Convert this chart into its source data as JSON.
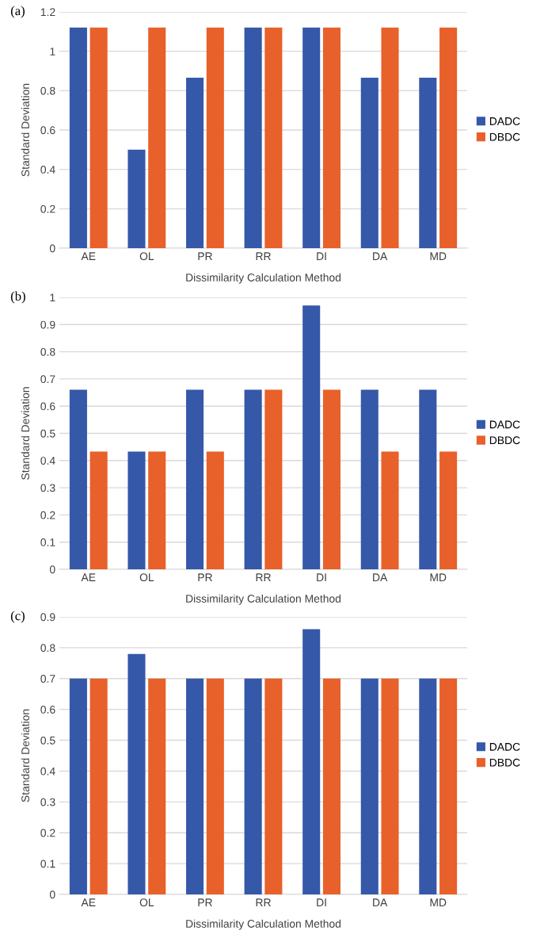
{
  "chart_data": [
    {
      "type": "bar",
      "annotations": [
        "(a)"
      ],
      "xlabel": "Dissimilarity Calculation Method",
      "ylabel": "Standard Deviation",
      "categories": [
        "AE",
        "OL",
        "PR",
        "RR",
        "DI",
        "DA",
        "MD"
      ],
      "series": [
        {
          "name": "DADC",
          "color": "#3558a8",
          "values": [
            1.12,
            0.5,
            0.866,
            1.12,
            1.12,
            0.866,
            0.866
          ]
        },
        {
          "name": "DBDC",
          "color": "#e8602a",
          "values": [
            1.12,
            1.12,
            1.12,
            1.12,
            1.12,
            1.12,
            1.12
          ]
        }
      ],
      "ylim": [
        0,
        1.2
      ],
      "yticks": [
        0,
        0.2,
        0.4,
        0.6,
        0.8,
        1,
        1.2
      ],
      "grid": "y",
      "legend": "right"
    },
    {
      "type": "bar",
      "annotations": [
        "(b)"
      ],
      "xlabel": "Dissimilarity Calculation Method",
      "ylabel": "Standard Deviation",
      "categories": [
        "AE",
        "OL",
        "PR",
        "RR",
        "DI",
        "DA",
        "MD"
      ],
      "series": [
        {
          "name": "DADC",
          "color": "#3558a8",
          "values": [
            0.66,
            0.433,
            0.66,
            0.66,
            0.97,
            0.66,
            0.66
          ]
        },
        {
          "name": "DBDC",
          "color": "#e8602a",
          "values": [
            0.433,
            0.433,
            0.433,
            0.66,
            0.66,
            0.433,
            0.433
          ]
        }
      ],
      "ylim": [
        0,
        1
      ],
      "yticks": [
        0,
        0.1,
        0.2,
        0.3,
        0.4,
        0.5,
        0.6,
        0.7,
        0.8,
        0.9,
        1
      ],
      "grid": "y",
      "legend": "right"
    },
    {
      "type": "bar",
      "annotations": [
        "(c)"
      ],
      "xlabel": "Dissimilarity Calculation Method",
      "ylabel": "Standard Deviation",
      "categories": [
        "AE",
        "OL",
        "PR",
        "RR",
        "DI",
        "DA",
        "MD"
      ],
      "series": [
        {
          "name": "DADC",
          "color": "#3558a8",
          "values": [
            0.7,
            0.78,
            0.7,
            0.7,
            0.86,
            0.7,
            0.7
          ]
        },
        {
          "name": "DBDC",
          "color": "#e8602a",
          "values": [
            0.7,
            0.7,
            0.7,
            0.7,
            0.7,
            0.7,
            0.7
          ]
        }
      ],
      "ylim": [
        0,
        0.9
      ],
      "yticks": [
        0,
        0.1,
        0.2,
        0.3,
        0.4,
        0.5,
        0.6,
        0.7,
        0.8,
        0.9
      ],
      "grid": "y",
      "legend": "right"
    }
  ]
}
